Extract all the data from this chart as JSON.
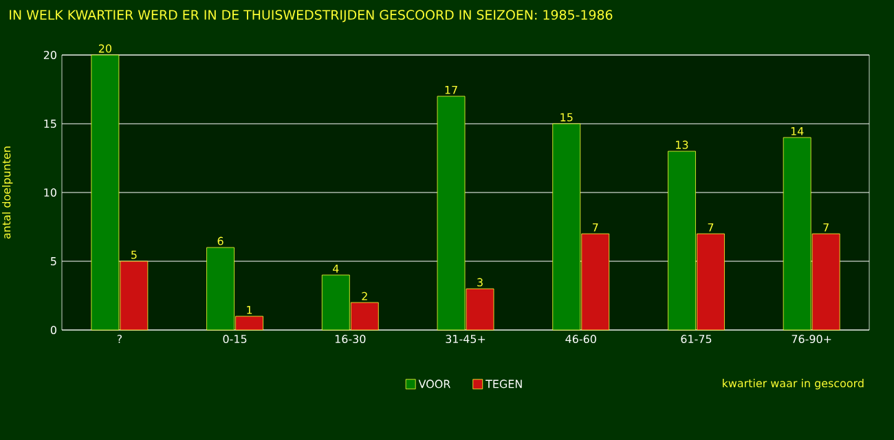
{
  "chart_data": {
    "type": "bar",
    "title": "IN WELK KWARTIER WERD ER IN DE THUISWEDSTRIJDEN GESCOORD IN SEIZOEN: 1985-1986",
    "xlabel": "kwartier waar in gescoord",
    "ylabel": "antal doelpunten",
    "categories": [
      "?",
      "0-15",
      "16-30",
      "31-45+",
      "46-60",
      "61-75",
      "76-90+"
    ],
    "series": [
      {
        "name": "VOOR",
        "color": "#008000",
        "values": [
          20,
          6,
          4,
          17,
          15,
          13,
          14
        ]
      },
      {
        "name": "TEGEN",
        "color": "#cc1111",
        "values": [
          5,
          1,
          2,
          3,
          7,
          7,
          7
        ]
      }
    ],
    "ylim": [
      0,
      20
    ],
    "yticks": [
      0,
      5,
      10,
      15,
      20
    ],
    "grid": "y",
    "legend": "bottom",
    "data_labels": true
  }
}
